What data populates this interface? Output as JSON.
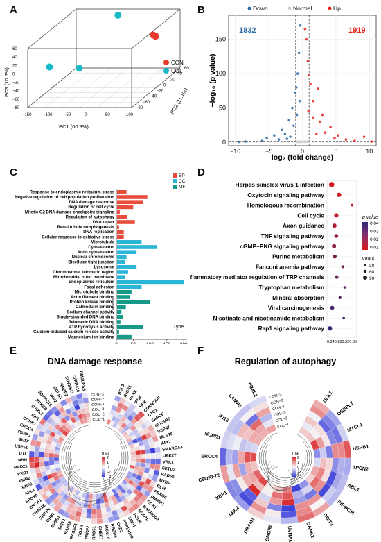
{
  "panels": {
    "A": {
      "letter": "A"
    },
    "B": {
      "letter": "B"
    },
    "C": {
      "letter": "C"
    },
    "D": {
      "letter": "D"
    },
    "E": {
      "letter": "E"
    },
    "F": {
      "letter": "F"
    }
  },
  "colors": {
    "con": "#e8392c",
    "col": "#17b9c9",
    "down": "#2b6aa6",
    "up": "#e8211b",
    "bp": "#e74c3c",
    "cc": "#2bb5d6",
    "mf": "#159a89"
  },
  "chart_data": [
    {
      "panel": "A",
      "type": "scatter",
      "xlabel": "PC1 (60.9%)",
      "ylabel": "PC2 (11.1%)",
      "zlabel": "PC3 (10.6%)",
      "xticks": [
        "−150",
        "−100",
        "−50",
        "0",
        "50",
        "100"
      ],
      "yticks": [
        "−80",
        "−60",
        "−40",
        "−20",
        "0",
        "20",
        "40",
        "60"
      ],
      "zticks": [
        "−80",
        "−60",
        "−40",
        "−20",
        "0",
        "20",
        "40",
        "60"
      ],
      "legend": [
        {
          "name": "CON",
          "color": "#e8392c"
        },
        {
          "name": "COL",
          "color": "#17b9c9"
        }
      ],
      "series": [
        {
          "name": "CON",
          "points": [
            [
              95,
              10,
              40
            ],
            [
              98,
              15,
              33
            ],
            [
              100,
              12,
              36
            ]
          ]
        },
        {
          "name": "COL",
          "points": [
            [
              -45,
              60,
              60
            ],
            [
              -160,
              -30,
              -20
            ],
            [
              -60,
              -50,
              -10
            ]
          ]
        }
      ]
    },
    {
      "panel": "B",
      "type": "scatter",
      "xlabel": "log₂ (fold change)",
      "ylabel": "−log₁₀ (p value)",
      "xlim": [
        -11,
        11
      ],
      "ylim": [
        -5,
        185
      ],
      "xticks": [
        "−10",
        "−5",
        "0",
        "5",
        "10"
      ],
      "yticks": [
        "0",
        "50",
        "100",
        "150"
      ],
      "legend": [
        "Down",
        "Normal",
        "Up"
      ],
      "counts": {
        "down": "1832",
        "up": "1919"
      },
      "series": [
        {
          "name": "Down",
          "points": [
            [
              -0.3,
              170
            ],
            [
              -0.5,
              130
            ],
            [
              -0.7,
              100
            ],
            [
              -0.9,
              80
            ],
            [
              -1.1,
              72
            ],
            [
              -0.4,
              60
            ],
            [
              -1.5,
              50
            ],
            [
              -0.8,
              40
            ],
            [
              -2,
              32
            ],
            [
              -1.3,
              24
            ],
            [
              -3,
              18
            ],
            [
              -2.6,
              12
            ],
            [
              -4.2,
              10
            ],
            [
              -5.3,
              6
            ],
            [
              -6,
              2
            ],
            [
              -3.5,
              4
            ],
            [
              -8.5,
              1
            ],
            [
              -9.5,
              0.5
            ],
            [
              -1.8,
              8
            ],
            [
              -2.3,
              5
            ]
          ]
        },
        {
          "name": "Up",
          "points": [
            [
              0.4,
              165
            ],
            [
              0.6,
              150
            ],
            [
              0.8,
              118
            ],
            [
              1.0,
              98
            ],
            [
              1.2,
              85
            ],
            [
              2.3,
              78
            ],
            [
              1.6,
              60
            ],
            [
              0.9,
              45
            ],
            [
              3,
              40
            ],
            [
              1.6,
              36
            ],
            [
              2.6,
              30
            ],
            [
              4.2,
              22
            ],
            [
              3.4,
              14
            ],
            [
              5.3,
              10
            ],
            [
              6.5,
              4
            ],
            [
              7.8,
              2
            ],
            [
              9.2,
              8
            ],
            [
              10.3,
              1
            ],
            [
              4.8,
              6
            ],
            [
              2.1,
              12
            ]
          ]
        }
      ]
    },
    {
      "panel": "C",
      "type": "bar",
      "xlabel": "Count",
      "xticks": [
        "0",
        "50",
        "100",
        "150",
        "200"
      ],
      "xlim": [
        0,
        210
      ],
      "legend_title": "Type",
      "legend": [
        "BP",
        "CC",
        "MF"
      ],
      "categories": [
        {
          "label": "Response to endoplasmic reticulum stress",
          "type": "BP",
          "value": 30
        },
        {
          "label": "Negative regulation of cell population proliferation",
          "type": "BP",
          "value": 92
        },
        {
          "label": "DNA damage response",
          "type": "BP",
          "value": 80
        },
        {
          "label": "Regulation of cell cycle",
          "type": "BP",
          "value": 50
        },
        {
          "label": "Mitotic G2 DNA damage checkpoint signaling",
          "type": "BP",
          "value": 10
        },
        {
          "label": "Regulation of autophagy",
          "type": "BP",
          "value": 32
        },
        {
          "label": "DNA repair",
          "type": "BP",
          "value": 55
        },
        {
          "label": "Renal tubule morphogenesis",
          "type": "BP",
          "value": 8
        },
        {
          "label": "DNA replication",
          "type": "BP",
          "value": 22
        },
        {
          "label": "Cellular response to oxidative stress",
          "type": "BP",
          "value": 22
        },
        {
          "label": "Microtubule",
          "type": "CC",
          "value": 75
        },
        {
          "label": "Cytoskeleton",
          "type": "CC",
          "value": 120
        },
        {
          "label": "Actin cytoskeleton",
          "type": "CC",
          "value": 60
        },
        {
          "label": "Nuclear chromosome",
          "type": "CC",
          "value": 30
        },
        {
          "label": "Bicellular tight junction",
          "type": "CC",
          "value": 25
        },
        {
          "label": "Lysosome",
          "type": "CC",
          "value": 60
        },
        {
          "label": "Chromosome, telomeric region",
          "type": "CC",
          "value": 35
        },
        {
          "label": "Mitochondrial outer membrane",
          "type": "CC",
          "value": 25
        },
        {
          "label": "Endoplasmic reticulum",
          "type": "CC",
          "value": 200
        },
        {
          "label": "Focal adhesion",
          "type": "CC",
          "value": 75
        },
        {
          "label": "Microtubule binding",
          "type": "MF",
          "value": 45
        },
        {
          "label": "Actin filament binding",
          "type": "MF",
          "value": 40
        },
        {
          "label": "Protein kinase binding",
          "type": "MF",
          "value": 100
        },
        {
          "label": "Calmodulin binding",
          "type": "MF",
          "value": 28
        },
        {
          "label": "Sodium channel activity",
          "type": "MF",
          "value": 15
        },
        {
          "label": "Single-stranded DNA binding",
          "type": "MF",
          "value": 20
        },
        {
          "label": "Telomeric DNA binding",
          "type": "MF",
          "value": 12
        },
        {
          "label": "ATP hydrolysis activity",
          "type": "MF",
          "value": 80
        },
        {
          "label": "Calcium-induced calcium release activity",
          "type": "MF",
          "value": 8
        },
        {
          "label": "Magnesium ion binding",
          "type": "MF",
          "value": 45
        }
      ]
    },
    {
      "panel": "D",
      "type": "scatter",
      "xlabel": "Rich factor",
      "xlim": [
        0.22,
        0.38
      ],
      "xticks": [
        "0.24",
        "0.28",
        "0.32",
        "0.36"
      ],
      "legend_color_title": "p value",
      "legend_color_ticks": [
        "0.04",
        "0.03",
        "0.02",
        "0.01"
      ],
      "legend_size_title": "count",
      "legend_size_ticks": [
        "30",
        "60",
        "90"
      ],
      "pathways": [
        {
          "label": "Herpes simplex virus 1 infection",
          "x": 0.245,
          "p": 0.001,
          "count": 88
        },
        {
          "label": "Oxytocin signaling pathway",
          "x": 0.285,
          "p": 0.004,
          "count": 55
        },
        {
          "label": "Homologous recombination",
          "x": 0.355,
          "p": 0.006,
          "count": 12
        },
        {
          "label": "Cell cycle",
          "x": 0.27,
          "p": 0.007,
          "count": 48
        },
        {
          "label": "Axon guidance",
          "x": 0.26,
          "p": 0.012,
          "count": 50
        },
        {
          "label": "TNF signaling pathway",
          "x": 0.27,
          "p": 0.02,
          "count": 38
        },
        {
          "label": "cGMP−PKG signaling pathway",
          "x": 0.258,
          "p": 0.022,
          "count": 50
        },
        {
          "label": "Purine metabolism",
          "x": 0.262,
          "p": 0.026,
          "count": 40
        },
        {
          "label": "Fanconi anemia pathway",
          "x": 0.305,
          "p": 0.028,
          "count": 15
        },
        {
          "label": "Inflammatory mediator regulation of TRP channels",
          "x": 0.272,
          "p": 0.03,
          "count": 30
        },
        {
          "label": "Tryptophan metabolism",
          "x": 0.315,
          "p": 0.033,
          "count": 10
        },
        {
          "label": "Mineral absorption",
          "x": 0.29,
          "p": 0.035,
          "count": 18
        },
        {
          "label": "Viral carcinogenesis",
          "x": 0.248,
          "p": 0.038,
          "count": 45
        },
        {
          "label": "Nicotinate and nicotinamide metabolism",
          "x": 0.31,
          "p": 0.04,
          "count": 10
        },
        {
          "label": "Rap1 signaling pathway",
          "x": 0.236,
          "p": 0.045,
          "count": 55
        }
      ]
    },
    {
      "panel": "E",
      "type": "heatmap",
      "title": "DNA damage response",
      "legend_title": "mat",
      "legend_ticks": [
        "2",
        "1",
        "0",
        "−1",
        "−2"
      ],
      "samples": [
        "COL−1",
        "COL−2",
        "COL−3",
        "CON−1",
        "CON−2",
        "CON−3"
      ],
      "sample_labels": [
        "COL−1",
        "COL−2",
        "COL−3",
        "CON−1",
        "CON−2",
        "CON−3"
      ],
      "genes": [
        "BCL3",
        "RNF11",
        "PAXX",
        "IFI16",
        "HFX",
        "CDKN2AIP",
        "CTC1",
        "FANCF",
        "ALKBH7",
        "USP47",
        "MLST8",
        "APC",
        "SMARCA4",
        "UBE2T",
        "VRK1",
        "SETD2",
        "RAD50",
        "MTBP",
        "BLM",
        "FBXO4",
        "PMAIP1",
        "CDK1",
        "MACROD2",
        "BOD1L",
        "POLK",
        "SMG1",
        "PPP1R15A",
        "CHD2",
        "RBBP8",
        "MCM10",
        "CHEK1",
        "RAD51",
        "PARP2",
        "TIGAR",
        "RASSF1",
        "RAD18",
        "SIRT1",
        "APBB1",
        "GHBL",
        "SPRTN",
        "CHAF1B",
        "BRCA1",
        "SPOYA",
        "ABL1",
        "RNF8",
        "FMN2",
        "EXO1",
        "RAD21",
        "NBN",
        "DTL",
        "USP51",
        "SETX",
        "PARP1",
        "ERCC4",
        "CCNK1",
        "EIF1",
        "DYRK2",
        "PRKCD",
        "ZDHHC16",
        "VAV2",
        "EGLN3",
        "NRBP2",
        "SUV39H1",
        "CFAP410",
        "TIMELESS"
      ],
      "rows_shown": 65
    },
    {
      "panel": "F",
      "type": "heatmap",
      "title": "Regulation of autophagy",
      "legend_title": "mat",
      "legend_ticks": [
        "2",
        "1",
        "0",
        "−1",
        "−2"
      ],
      "samples": [
        "COL−1",
        "COL−2",
        "COL−3",
        "CON−1",
        "CON−2",
        "CON−3"
      ],
      "sample_labels": [
        "COL−1",
        "COL−2",
        "COL−3",
        "CON−1",
        "CON−2",
        "CON−3"
      ],
      "genes": [
        "ULK1",
        "OSBPL7",
        "MTCL1",
        "HSPB1",
        "TPCN2",
        "ABL1",
        "PIP4K2B",
        "DDIT3",
        "DAPK2",
        "UVRAG",
        "SMCR8",
        "DRAM1",
        "ABL2",
        "XBP1",
        "C9ORF72",
        "ERCC4",
        "NUPR1",
        "IFI16",
        "LAMP3",
        "FBXL2"
      ]
    }
  ]
}
